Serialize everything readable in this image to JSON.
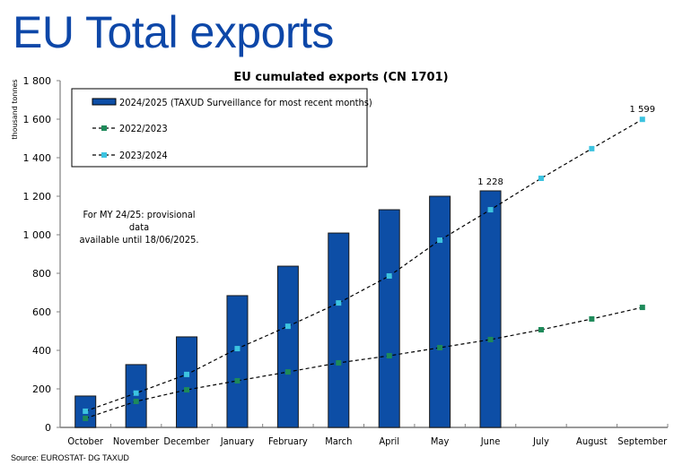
{
  "slide": {
    "title": "EU Total exports",
    "source": "Source: EUROSTAT-  DG TAXUD"
  },
  "chart_data": {
    "type": "bar",
    "title": "EU cumulated exports (CN 1701)",
    "xlabel": "",
    "ylabel": "thousand tonnes",
    "ylim": [
      0,
      1800
    ],
    "yticks": [
      0,
      200,
      400,
      600,
      800,
      1000,
      1200,
      1400,
      1600,
      1800
    ],
    "ytick_labels": [
      "0",
      "200",
      "400",
      "600",
      "800",
      "1 000",
      "1 200",
      "1 400",
      "1 600",
      "1 800"
    ],
    "grid": false,
    "legend_position": "top-left",
    "categories": [
      "October",
      "November",
      "December",
      "January",
      "February",
      "March",
      "April",
      "May",
      "June",
      "July",
      "August",
      "September"
    ],
    "series": [
      {
        "name": "2024/2025 (TAXUD Surveillance for most recent months)",
        "kind": "bar",
        "color": "#0d4ea6",
        "values": [
          163,
          326,
          470,
          684,
          837,
          1009,
          1130,
          1200,
          1228,
          null,
          null,
          null
        ]
      },
      {
        "name": "2022/2023",
        "kind": "line",
        "color": "#1e8a5a",
        "values": [
          47,
          135,
          195,
          242,
          288,
          335,
          372,
          414,
          456,
          507,
          563,
          623
        ]
      },
      {
        "name": "2023/2024",
        "kind": "line",
        "color": "#3cc3e0",
        "values": [
          84,
          178,
          275,
          409,
          525,
          646,
          786,
          972,
          1130,
          1293,
          1447,
          1599
        ]
      }
    ],
    "data_labels": [
      {
        "series": "2024/2025 (TAXUD Surveillance for most recent months)",
        "category": "June",
        "text": "1 228"
      },
      {
        "series": "2023/2024",
        "category": "September",
        "text": "1 599"
      }
    ],
    "annotation": [
      "For MY 24/25: provisional data",
      "available until 18/06/2025."
    ]
  }
}
